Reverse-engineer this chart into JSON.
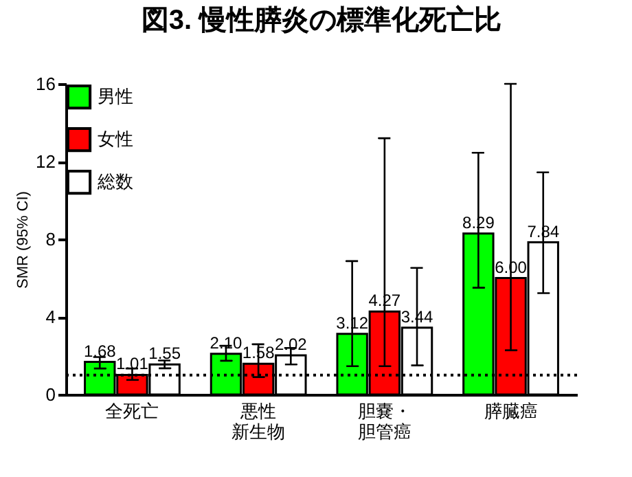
{
  "chart_data": {
    "type": "bar",
    "title": "図3. 慢性膵炎の標準化死亡比",
    "ylabel": "SMR (95% CI)",
    "categories": [
      "全死亡",
      "悪性新生物",
      "胆嚢・胆管癌",
      "膵臓癌"
    ],
    "series": [
      {
        "name": "男性",
        "color": "#00ff00",
        "values": [
          1.68,
          2.1,
          3.12,
          8.29
        ],
        "value_labels": [
          "1.68",
          "2.10",
          "3.12",
          "8.29"
        ],
        "errors": [
          [
            1.34,
            1.93
          ],
          [
            1.74,
            2.51
          ],
          [
            1.46,
            6.87
          ],
          [
            5.5,
            12.45
          ]
        ]
      },
      {
        "name": "女性",
        "color": "#ff0000",
        "values": [
          1.01,
          1.58,
          4.27,
          6.0
        ],
        "value_labels": [
          "1.01",
          "1.58",
          "4.27",
          "6.00"
        ],
        "errors": [
          [
            0.75,
            1.34
          ],
          [
            0.9,
            2.59
          ],
          [
            1.46,
            13.2
          ],
          [
            2.28,
            16
          ]
        ]
      },
      {
        "name": "総数",
        "color": "#ffffff",
        "values": [
          1.55,
          2.02,
          3.44,
          7.84
        ],
        "value_labels": [
          "1.55",
          "2.02",
          "3.44",
          "7.84"
        ],
        "errors": [
          [
            1.35,
            1.75
          ],
          [
            1.55,
            2.4
          ],
          [
            1.5,
            6.52
          ],
          [
            5.22,
            11.44
          ]
        ]
      }
    ],
    "ylim": [
      0,
      16
    ],
    "yticks": [
      0,
      4,
      8,
      12,
      16
    ],
    "grid": false,
    "legend": "top left",
    "ref_lines": [
      {
        "axis": "y",
        "value": 1,
        "color": "#000000",
        "line_style": "dotted"
      }
    ]
  }
}
